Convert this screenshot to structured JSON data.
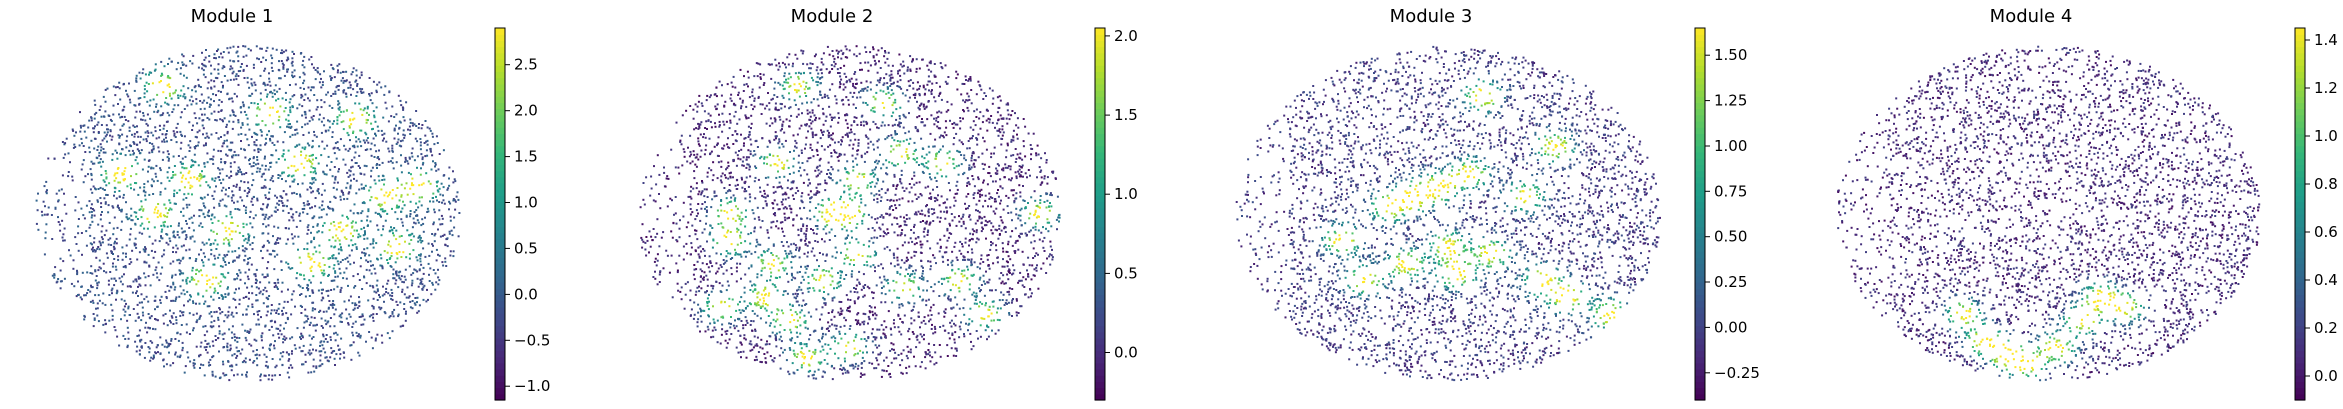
{
  "chart_data": [
    {
      "type": "scatter",
      "title": "Module 1",
      "colormap": "viridis",
      "colorbar": {
        "range": [
          -1.15,
          2.9
        ],
        "ticks": [
          -1.0,
          -0.5,
          0.0,
          0.5,
          1.0,
          1.5,
          2.0,
          2.5
        ],
        "tick_labels": [
          "−1.0",
          "−0.5",
          "0.0",
          "0.5",
          "1.0",
          "1.5",
          "2.0",
          "2.5"
        ]
      },
      "hotspots": [
        [
          0.3,
          0.88
        ],
        [
          0.55,
          0.8
        ],
        [
          0.75,
          0.78
        ],
        [
          0.62,
          0.65
        ],
        [
          0.36,
          0.6
        ],
        [
          0.28,
          0.5
        ],
        [
          0.82,
          0.55
        ],
        [
          0.72,
          0.45
        ],
        [
          0.85,
          0.4
        ],
        [
          0.45,
          0.45
        ],
        [
          0.4,
          0.3
        ],
        [
          0.2,
          0.62
        ],
        [
          0.65,
          0.35
        ],
        [
          0.9,
          0.58
        ]
      ],
      "background_level": 0.15
    },
    {
      "type": "scatter",
      "title": "Module 2",
      "colormap": "viridis",
      "colorbar": {
        "range": [
          -0.3,
          2.05
        ],
        "ticks": [
          0.0,
          0.5,
          1.0,
          1.5,
          2.0
        ],
        "tick_labels": [
          "0.0",
          "0.5",
          "1.0",
          "1.5",
          "2.0"
        ]
      },
      "hotspots": [
        [
          0.38,
          0.88
        ],
        [
          0.58,
          0.83
        ],
        [
          0.62,
          0.68
        ],
        [
          0.72,
          0.65
        ],
        [
          0.52,
          0.6
        ],
        [
          0.5,
          0.5
        ],
        [
          0.46,
          0.5
        ],
        [
          0.22,
          0.5
        ],
        [
          0.22,
          0.42
        ],
        [
          0.95,
          0.5
        ],
        [
          0.32,
          0.35
        ],
        [
          0.52,
          0.38
        ],
        [
          0.44,
          0.3
        ],
        [
          0.3,
          0.25
        ],
        [
          0.2,
          0.22
        ],
        [
          0.63,
          0.28
        ],
        [
          0.76,
          0.3
        ],
        [
          0.82,
          0.2
        ],
        [
          0.5,
          0.1
        ],
        [
          0.36,
          0.18
        ],
        [
          0.4,
          0.07
        ],
        [
          0.33,
          0.65
        ]
      ],
      "background_level": 0.02
    },
    {
      "type": "scatter",
      "title": "Module 3",
      "colormap": "viridis",
      "colorbar": {
        "range": [
          -0.4,
          1.65
        ],
        "ticks": [
          -0.25,
          0.0,
          0.25,
          0.5,
          0.75,
          1.0,
          1.25,
          1.5
        ],
        "tick_labels": [
          "−0.25",
          "0.00",
          "0.25",
          "0.50",
          "0.75",
          "1.00",
          "1.25",
          "1.50"
        ]
      },
      "hotspots": [
        [
          0.42,
          0.55
        ],
        [
          0.48,
          0.58
        ],
        [
          0.36,
          0.52
        ],
        [
          0.55,
          0.62
        ],
        [
          0.68,
          0.55
        ],
        [
          0.6,
          0.38
        ],
        [
          0.5,
          0.4
        ],
        [
          0.52,
          0.32
        ],
        [
          0.72,
          0.3
        ],
        [
          0.78,
          0.25
        ],
        [
          0.3,
          0.3
        ],
        [
          0.25,
          0.42
        ],
        [
          0.4,
          0.35
        ],
        [
          0.88,
          0.2
        ],
        [
          0.75,
          0.7
        ],
        [
          0.58,
          0.85
        ]
      ],
      "background_level": 0.08
    },
    {
      "type": "scatter",
      "title": "Module 4",
      "colormap": "viridis",
      "colorbar": {
        "range": [
          -0.1,
          1.45
        ],
        "ticks": [
          0.0,
          0.2,
          0.4,
          0.6,
          0.8,
          1.0,
          1.2,
          1.4
        ],
        "tick_labels": [
          "0.0",
          "0.2",
          "0.4",
          "0.6",
          "0.8",
          "1.0",
          "1.2",
          "1.4"
        ]
      },
      "hotspots": [
        [
          0.4,
          0.08
        ],
        [
          0.45,
          0.05
        ],
        [
          0.35,
          0.12
        ],
        [
          0.52,
          0.1
        ],
        [
          0.58,
          0.18
        ],
        [
          0.3,
          0.2
        ],
        [
          0.62,
          0.25
        ],
        [
          0.68,
          0.22
        ]
      ],
      "background_level": 0.03
    }
  ]
}
